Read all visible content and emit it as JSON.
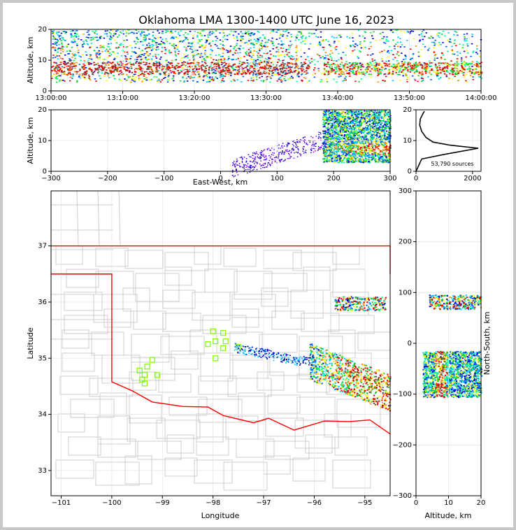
{
  "title": "Oklahoma LMA 1300-1400 UTC June 16, 2023",
  "colors": {
    "density_ramp": [
      "#0000cc",
      "#0055ff",
      "#00c8ff",
      "#00ff88",
      "#22cc22",
      "#ffff00",
      "#ff8800",
      "#ff0000",
      "#d20000",
      "#ffffff",
      "#555555"
    ],
    "state_border": "#ff0000",
    "county_lines": "#cccccc",
    "stations": "#7cfc00"
  },
  "chart_data": [
    {
      "type": "scatter",
      "name": "altitude-time",
      "ylabel": "Altitude, km",
      "ylim": [
        0,
        20
      ],
      "yticks": [
        "0",
        "10",
        "20"
      ],
      "xlim_minutes": [
        0,
        60
      ],
      "xticks": [
        "13:00:00",
        "13:10:00",
        "13:20:00",
        "13:30:00",
        "13:40:00",
        "13:50:00",
        "14:00:00"
      ],
      "tick_minutes": [
        0,
        10,
        20,
        30,
        40,
        50,
        60
      ]
    },
    {
      "type": "scatter",
      "name": "east-west-altitude",
      "xlabel": "East-West, km",
      "ylabel": "Altitude, km",
      "xlim": [
        -300,
        300
      ],
      "ylim": [
        0,
        20
      ],
      "xticks": [
        "−300",
        "−200",
        "−100",
        "0",
        "100",
        "200",
        "300"
      ],
      "xtick_values": [
        -300,
        -200,
        -100,
        0,
        100,
        200,
        300
      ],
      "yticks": [
        "0",
        "10",
        "20"
      ]
    },
    {
      "type": "line",
      "name": "altitude-histogram",
      "annotation": "53,790 sources",
      "xlim": [
        0,
        2300
      ],
      "ylim": [
        0,
        20
      ],
      "xticks": [
        "0",
        "2000"
      ],
      "xtick_values": [
        0,
        2000
      ],
      "yticks": [
        "0",
        "10",
        "20"
      ],
      "profile": [
        [
          0,
          0
        ],
        [
          200,
          4
        ],
        [
          1000,
          5.5
        ],
        [
          2200,
          7.5
        ],
        [
          1200,
          8.5
        ],
        [
          600,
          9.5
        ],
        [
          350,
          11
        ],
        [
          200,
          13
        ],
        [
          130,
          15
        ],
        [
          150,
          17
        ],
        [
          260,
          19
        ],
        [
          300,
          19.5
        ]
      ]
    },
    {
      "type": "scatter",
      "name": "plan-view-map",
      "xlabel": "Longitude",
      "ylabel": "Latitude",
      "xlim": [
        -101.2,
        -94.5
      ],
      "ylim": [
        32.55,
        37.98
      ],
      "xticks": [
        "−101",
        "−100",
        "−99",
        "−98",
        "−97",
        "−96",
        "−95"
      ],
      "xtick_values": [
        -101,
        -100,
        -99,
        -98,
        -97,
        -96,
        -95
      ],
      "yticks": [
        "33",
        "34",
        "35",
        "36",
        "37"
      ],
      "ytick_values": [
        33,
        34,
        35,
        36,
        37
      ],
      "stations": [
        [
          -99.2,
          34.97
        ],
        [
          -99.3,
          34.85
        ],
        [
          -99.45,
          34.78
        ],
        [
          -99.35,
          34.7
        ],
        [
          -99.1,
          34.7
        ],
        [
          -99.4,
          34.62
        ],
        [
          -99.35,
          34.55
        ],
        [
          -98.0,
          35.48
        ],
        [
          -97.8,
          35.45
        ],
        [
          -98.1,
          35.25
        ],
        [
          -97.95,
          35.3
        ],
        [
          -97.75,
          35.3
        ],
        [
          -97.8,
          35.18
        ],
        [
          -97.5,
          35.2
        ],
        [
          -97.95,
          35.0
        ]
      ]
    },
    {
      "type": "scatter",
      "name": "north-south-altitude",
      "xlabel": "Altitude, km",
      "ylabel": "North-South, km",
      "xlim": [
        0,
        20
      ],
      "ylim": [
        -300,
        300
      ],
      "xticks": [
        "0",
        "10",
        "20"
      ],
      "xtick_values": [
        0,
        10,
        20
      ],
      "yticks": [
        "−300",
        "−200",
        "−100",
        "0",
        "100",
        "200",
        "300"
      ],
      "ytick_values": [
        -300,
        -200,
        -100,
        0,
        100,
        200,
        300
      ]
    }
  ]
}
